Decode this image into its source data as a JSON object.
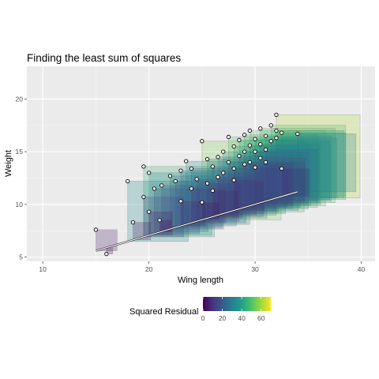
{
  "chart_data": {
    "type": "scatter",
    "title": "Finding the least sum of squares",
    "xlabel": "Wing length",
    "ylabel": "Weight",
    "xlim": [
      8.5,
      41.3
    ],
    "ylim": [
      4.6,
      23.1
    ],
    "xticks": [
      10,
      20,
      30,
      40
    ],
    "yticks": [
      5,
      10,
      15,
      20
    ],
    "grid": true,
    "regression_line": {
      "x": [
        15,
        34
      ],
      "y": [
        5.6,
        11.2
      ]
    },
    "points": [
      {
        "x": 15.0,
        "y": 7.6
      },
      {
        "x": 16.0,
        "y": 5.3
      },
      {
        "x": 18.0,
        "y": 12.2
      },
      {
        "x": 18.5,
        "y": 8.3
      },
      {
        "x": 19.5,
        "y": 10.7
      },
      {
        "x": 19.5,
        "y": 13.6
      },
      {
        "x": 20.0,
        "y": 9.3
      },
      {
        "x": 20.0,
        "y": 13.0
      },
      {
        "x": 20.5,
        "y": 11.5
      },
      {
        "x": 21.0,
        "y": 8.5
      },
      {
        "x": 21.2,
        "y": 11.8
      },
      {
        "x": 22.0,
        "y": 12.7
      },
      {
        "x": 22.5,
        "y": 12.2
      },
      {
        "x": 23.0,
        "y": 10.3
      },
      {
        "x": 23.0,
        "y": 13.2
      },
      {
        "x": 23.5,
        "y": 14.1
      },
      {
        "x": 24.0,
        "y": 11.5
      },
      {
        "x": 24.0,
        "y": 13.4
      },
      {
        "x": 24.5,
        "y": 12.4
      },
      {
        "x": 25.0,
        "y": 10.2
      },
      {
        "x": 25.0,
        "y": 16.0
      },
      {
        "x": 25.5,
        "y": 12.0
      },
      {
        "x": 25.5,
        "y": 14.3
      },
      {
        "x": 26.0,
        "y": 13.6
      },
      {
        "x": 26.0,
        "y": 11.3
      },
      {
        "x": 26.5,
        "y": 14.5
      },
      {
        "x": 26.5,
        "y": 12.6
      },
      {
        "x": 27.0,
        "y": 15.0
      },
      {
        "x": 27.0,
        "y": 13.0
      },
      {
        "x": 27.5,
        "y": 16.4
      },
      {
        "x": 27.5,
        "y": 14.0
      },
      {
        "x": 28.0,
        "y": 15.5
      },
      {
        "x": 28.0,
        "y": 13.4
      },
      {
        "x": 28.0,
        "y": 12.3
      },
      {
        "x": 28.5,
        "y": 16.1
      },
      {
        "x": 28.5,
        "y": 14.6
      },
      {
        "x": 29.0,
        "y": 15.0
      },
      {
        "x": 29.0,
        "y": 13.8
      },
      {
        "x": 29.0,
        "y": 16.6
      },
      {
        "x": 29.5,
        "y": 17.0
      },
      {
        "x": 29.5,
        "y": 15.6
      },
      {
        "x": 29.5,
        "y": 14.0
      },
      {
        "x": 30.0,
        "y": 16.2
      },
      {
        "x": 30.0,
        "y": 15.0
      },
      {
        "x": 30.0,
        "y": 13.5
      },
      {
        "x": 30.5,
        "y": 17.2
      },
      {
        "x": 30.5,
        "y": 15.7
      },
      {
        "x": 30.5,
        "y": 14.4
      },
      {
        "x": 31.0,
        "y": 16.5
      },
      {
        "x": 31.0,
        "y": 15.2
      },
      {
        "x": 31.0,
        "y": 14.0
      },
      {
        "x": 31.5,
        "y": 16.0
      },
      {
        "x": 31.5,
        "y": 17.5
      },
      {
        "x": 32.0,
        "y": 18.5
      },
      {
        "x": 32.0,
        "y": 17.0
      },
      {
        "x": 32.0,
        "y": 16.3
      },
      {
        "x": 32.5,
        "y": 13.4
      },
      {
        "x": 32.5,
        "y": 16.8
      },
      {
        "x": 34.0,
        "y": 16.7
      }
    ],
    "squares": {
      "count": 59,
      "fill_metric": "squared residual",
      "opacity": 0.25
    },
    "legend": {
      "title": "Squared Residual",
      "position": "bottom",
      "colormap": "viridis",
      "range": [
        0,
        70
      ],
      "ticks": [
        0,
        20,
        40,
        60
      ]
    }
  }
}
